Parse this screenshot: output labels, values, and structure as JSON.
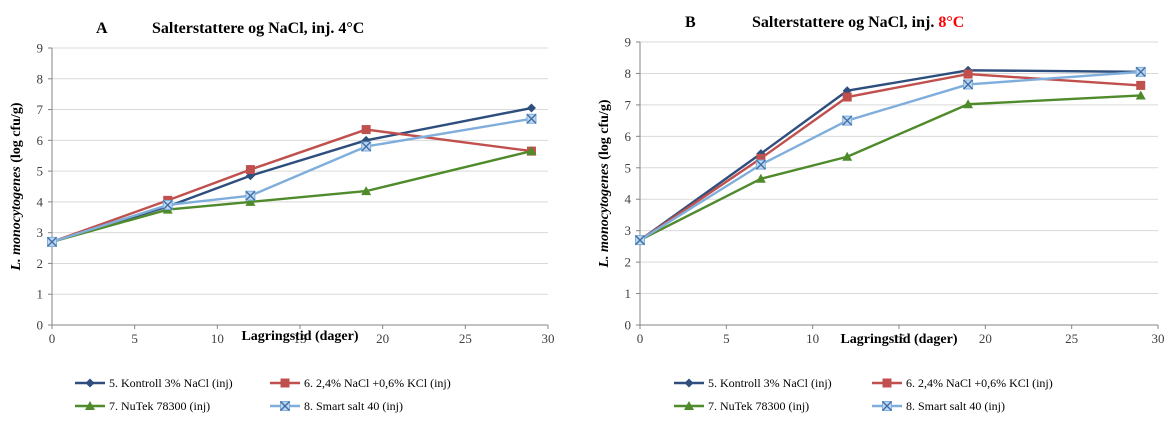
{
  "chart_data": [
    {
      "type": "line",
      "panel_label": "A",
      "title": "Salterstattere og NaCl, inj.",
      "title_highlight": "4°C",
      "title_highlight_color": "#000000",
      "xlabel": "Lagringstid (dager)",
      "ylabel_italic": "L. monocytogenes",
      "ylabel_rest": " (log cfu/g)",
      "xlim": [
        0,
        30
      ],
      "ylim": [
        0,
        9
      ],
      "xticks": [
        0,
        5,
        10,
        15,
        20,
        25,
        30
      ],
      "yticks": [
        0,
        1,
        2,
        3,
        4,
        5,
        6,
        7,
        8,
        9
      ],
      "grid": "horizontal",
      "legend_position": "bottom",
      "series": [
        {
          "name": "5. Kontroll 3% NaCl  (inj)",
          "color": "#2E4E7E",
          "marker": "diamond",
          "x": [
            0,
            7,
            12,
            19,
            29
          ],
          "y": [
            2.7,
            3.85,
            4.85,
            6.0,
            7.05
          ]
        },
        {
          "name": "6. 2,4% NaCl +0,6% KCl (inj)",
          "color": "#C0504D",
          "marker": "square",
          "x": [
            0,
            7,
            12,
            19,
            29
          ],
          "y": [
            2.7,
            4.05,
            5.05,
            6.35,
            5.65
          ]
        },
        {
          "name": "7. NuTek 78300 (inj)",
          "color": "#4F8A2B",
          "marker": "triangle",
          "x": [
            0,
            7,
            12,
            19,
            29
          ],
          "y": [
            2.7,
            3.75,
            4.0,
            4.35,
            5.65
          ]
        },
        {
          "name": "8. Smart salt 40 (inj)",
          "color": "#7FAEDC",
          "marker": "x",
          "x": [
            0,
            7,
            12,
            19,
            29
          ],
          "y": [
            2.7,
            3.9,
            4.2,
            5.8,
            6.7
          ]
        }
      ]
    },
    {
      "type": "line",
      "panel_label": "B",
      "title": "Salterstattere og NaCl, inj.",
      "title_highlight": "8°C",
      "title_highlight_color": "#FF0000",
      "xlabel": "Lagringstid (dager)",
      "ylabel_italic": "L. monocytogenes",
      "ylabel_rest": " (log cfu/g)",
      "xlim": [
        0,
        30
      ],
      "ylim": [
        0,
        9
      ],
      "xticks": [
        0,
        5,
        10,
        15,
        20,
        25,
        30
      ],
      "yticks": [
        0,
        1,
        2,
        3,
        4,
        5,
        6,
        7,
        8,
        9
      ],
      "grid": "horizontal",
      "legend_position": "bottom",
      "series": [
        {
          "name": "5. Kontroll 3% NaCl  (inj)",
          "color": "#2E4E7E",
          "marker": "diamond",
          "x": [
            0,
            7,
            12,
            19,
            29
          ],
          "y": [
            2.7,
            5.45,
            7.45,
            8.1,
            8.05
          ]
        },
        {
          "name": "6. 2,4% NaCl +0,6% KCl (inj)",
          "color": "#C0504D",
          "marker": "square",
          "x": [
            0,
            7,
            12,
            19,
            29
          ],
          "y": [
            2.7,
            5.3,
            7.25,
            7.98,
            7.62
          ]
        },
        {
          "name": "7. NuTek 78300 (inj)",
          "color": "#4F8A2B",
          "marker": "triangle",
          "x": [
            0,
            7,
            12,
            19,
            29
          ],
          "y": [
            2.7,
            4.65,
            5.35,
            7.02,
            7.3
          ]
        },
        {
          "name": "8. Smart salt 40 (inj)",
          "color": "#7FAEDC",
          "marker": "x",
          "x": [
            0,
            7,
            12,
            19,
            29
          ],
          "y": [
            2.7,
            5.1,
            6.5,
            7.65,
            8.05
          ]
        }
      ]
    }
  ]
}
